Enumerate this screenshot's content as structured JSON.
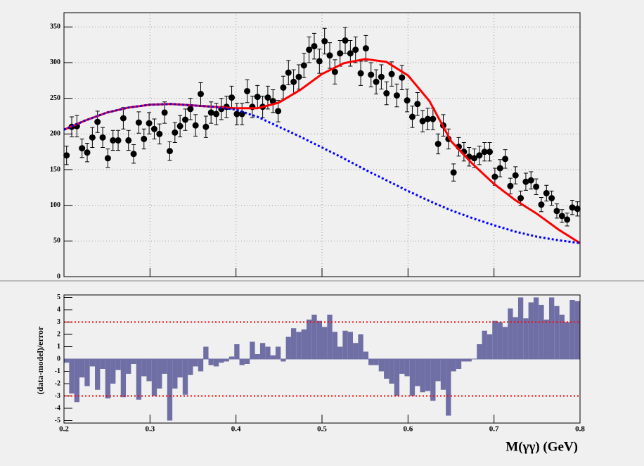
{
  "chart_data": [
    {
      "type": "errorbar_fit",
      "xlim": [
        0.2,
        0.8
      ],
      "ylim": [
        0,
        370
      ],
      "xticks": [
        0.2,
        0.3,
        0.4,
        0.5,
        0.6,
        0.7,
        0.8
      ],
      "yticks": [
        0,
        50,
        100,
        150,
        200,
        250,
        300,
        350
      ],
      "grid": true,
      "series": [
        {
          "style": "markers",
          "color": "#000000",
          "x": [
            0.203,
            0.209,
            0.215,
            0.221,
            0.227,
            0.233,
            0.239,
            0.245,
            0.251,
            0.257,
            0.263,
            0.269,
            0.275,
            0.281,
            0.287,
            0.293,
            0.299,
            0.305,
            0.311,
            0.317,
            0.323,
            0.329,
            0.335,
            0.341,
            0.347,
            0.353,
            0.359,
            0.365,
            0.371,
            0.377,
            0.383,
            0.389,
            0.395,
            0.401,
            0.407,
            0.413,
            0.419,
            0.425,
            0.431,
            0.437,
            0.443,
            0.449,
            0.455,
            0.461,
            0.467,
            0.473,
            0.479,
            0.485,
            0.491,
            0.497,
            0.503,
            0.509,
            0.515,
            0.521,
            0.527,
            0.533,
            0.539,
            0.545,
            0.551,
            0.557,
            0.563,
            0.569,
            0.575,
            0.581,
            0.587,
            0.593,
            0.599,
            0.605,
            0.611,
            0.617,
            0.623,
            0.629,
            0.635,
            0.641,
            0.647,
            0.653,
            0.659,
            0.665,
            0.671,
            0.677,
            0.683,
            0.689,
            0.695,
            0.701,
            0.707,
            0.713,
            0.719,
            0.725,
            0.731,
            0.737,
            0.743,
            0.749,
            0.755,
            0.761,
            0.767,
            0.773,
            0.779,
            0.785,
            0.791,
            0.797
          ],
          "values": [
            170,
            210,
            211,
            180,
            174,
            195,
            217,
            195,
            166,
            191,
            191,
            222,
            191,
            172,
            216,
            193,
            215,
            207,
            200,
            230,
            176,
            202,
            211,
            220,
            235,
            212,
            256,
            210,
            230,
            228,
            235,
            238,
            251,
            228,
            228,
            260,
            238,
            252,
            238,
            251,
            246,
            232,
            265,
            286,
            273,
            280,
            296,
            318,
            323,
            302,
            330,
            310,
            287,
            313,
            331,
            313,
            318,
            285,
            320,
            283,
            273,
            280,
            257,
            284,
            254,
            279,
            247,
            224,
            242,
            218,
            221,
            221,
            186,
            212,
            193,
            146,
            182,
            175,
            168,
            166,
            170,
            175,
            175,
            140,
            152,
            165,
            127,
            142,
            110,
            133,
            135,
            126,
            101,
            117,
            110,
            92,
            85,
            80,
            97,
            95
          ],
          "errors": [
            13,
            14,
            15,
            13,
            13,
            14,
            15,
            14,
            13,
            14,
            14,
            15,
            14,
            13,
            15,
            14,
            15,
            14,
            14,
            15,
            13,
            14,
            15,
            15,
            15,
            15,
            16,
            15,
            15,
            15,
            15,
            15,
            16,
            15,
            15,
            16,
            15,
            16,
            15,
            16,
            16,
            15,
            16,
            17,
            17,
            17,
            17,
            18,
            18,
            17,
            18,
            18,
            17,
            18,
            18,
            18,
            18,
            17,
            18,
            17,
            17,
            17,
            16,
            17,
            16,
            17,
            16,
            15,
            16,
            15,
            15,
            15,
            14,
            15,
            14,
            12,
            13,
            13,
            13,
            13,
            13,
            13,
            13,
            12,
            12,
            13,
            11,
            12,
            10,
            12,
            12,
            11,
            10,
            11,
            10,
            10,
            9,
            9,
            10,
            10
          ]
        },
        {
          "style": "line",
          "color": "#ff0000",
          "x": [
            0.2,
            0.225,
            0.25,
            0.275,
            0.3,
            0.325,
            0.35,
            0.375,
            0.4,
            0.425,
            0.45,
            0.475,
            0.5,
            0.525,
            0.55,
            0.575,
            0.6,
            0.625,
            0.65,
            0.675,
            0.7,
            0.725,
            0.75,
            0.775,
            0.8
          ],
          "values": [
            206,
            219,
            230,
            237,
            241,
            242,
            240,
            238,
            236,
            236,
            244,
            262,
            284,
            299,
            305,
            301,
            282,
            246,
            190,
            158,
            130,
            107,
            88,
            66,
            47
          ]
        },
        {
          "style": "dashed",
          "color": "#0000ff",
          "x": [
            0.2,
            0.225,
            0.25,
            0.275,
            0.3,
            0.325,
            0.35,
            0.375,
            0.4,
            0.425,
            0.45,
            0.475,
            0.5,
            0.525,
            0.55,
            0.575,
            0.6,
            0.625,
            0.65,
            0.675,
            0.7,
            0.725,
            0.75,
            0.775,
            0.8
          ],
          "values": [
            206,
            219,
            230,
            237,
            241,
            242,
            240,
            238,
            234,
            224,
            210,
            196,
            181,
            166,
            150,
            135,
            120,
            106,
            93,
            82,
            72,
            63,
            56,
            51,
            47
          ]
        }
      ]
    },
    {
      "type": "histogram",
      "x_label": "M(γγ) (GeV)",
      "y_label": "(data-model)/error",
      "color": "#6f6fa6",
      "xlim": [
        0.2,
        0.8
      ],
      "ylim": [
        -5.2,
        5.2
      ],
      "xticks": [
        0.2,
        0.3,
        0.4,
        0.5,
        0.6,
        0.7,
        0.8
      ],
      "yticks": [
        -5,
        -4,
        -3,
        -2,
        -1,
        0,
        1,
        2,
        3,
        4,
        5
      ],
      "reference_lines": [
        -3,
        3
      ],
      "reference_color": "#ff0000",
      "bins": [
        0.2,
        0.206,
        0.212,
        0.218,
        0.224,
        0.23,
        0.236,
        0.242,
        0.248,
        0.254,
        0.26,
        0.266,
        0.272,
        0.278,
        0.284,
        0.29,
        0.296,
        0.302,
        0.308,
        0.314,
        0.32,
        0.326,
        0.332,
        0.338,
        0.344,
        0.35,
        0.356,
        0.362,
        0.368,
        0.374,
        0.38,
        0.386,
        0.392,
        0.398,
        0.404,
        0.41,
        0.416,
        0.422,
        0.428,
        0.434,
        0.44,
        0.446,
        0.452,
        0.458,
        0.464,
        0.47,
        0.476,
        0.482,
        0.488,
        0.494,
        0.5,
        0.506,
        0.512,
        0.518,
        0.524,
        0.53,
        0.536,
        0.542,
        0.548,
        0.554,
        0.56,
        0.566,
        0.572,
        0.578,
        0.584,
        0.59,
        0.596,
        0.602,
        0.608,
        0.614,
        0.62,
        0.626,
        0.632,
        0.638,
        0.644,
        0.65,
        0.656,
        0.662,
        0.668,
        0.674,
        0.68,
        0.686,
        0.692,
        0.698,
        0.704,
        0.71,
        0.716,
        0.722,
        0.728,
        0.734,
        0.74,
        0.746,
        0.752,
        0.758,
        0.764,
        0.77,
        0.776,
        0.782,
        0.788,
        0.794,
        0.8
      ],
      "values": [
        -0.3,
        -2.8,
        -3.5,
        -1.5,
        -2.2,
        -0.6,
        -2.5,
        -0.8,
        -3.2,
        -2.0,
        -0.9,
        -3.1,
        -1.2,
        -0.4,
        -3.3,
        -1.4,
        -1.8,
        -3.0,
        -2.4,
        -1.2,
        -5.0,
        -2.4,
        -1.5,
        -2.9,
        -1.3,
        -0.6,
        -1.0,
        1.0,
        -0.5,
        -0.6,
        -0.3,
        -0.2,
        0.2,
        1.2,
        -0.5,
        -0.4,
        1.4,
        0.4,
        1.3,
        1.0,
        0.3,
        1.0,
        -0.2,
        1.8,
        2.5,
        2.2,
        2.4,
        3.2,
        3.6,
        3.1,
        2.6,
        3.6,
        2.2,
        1.0,
        2.3,
        2.2,
        1.3,
        2.0,
        0.6,
        -0.5,
        -0.5,
        -1.0,
        -1.6,
        -2.0,
        -3.0,
        -1.2,
        -1.4,
        -3.0,
        -2.2,
        -2.7,
        -2.6,
        -3.4,
        -1.8,
        -2.5,
        -4.6,
        -1.0,
        -0.8,
        -0.2,
        -0.2,
        0.0,
        1.2,
        2.3,
        2.0,
        3.1,
        3.0,
        2.6,
        4.1,
        3.4,
        5.0,
        3.3,
        4.6,
        5.0,
        4.4,
        3.2,
        5.0,
        4.3,
        3.6,
        3.0,
        4.8,
        4.7
      ]
    }
  ]
}
